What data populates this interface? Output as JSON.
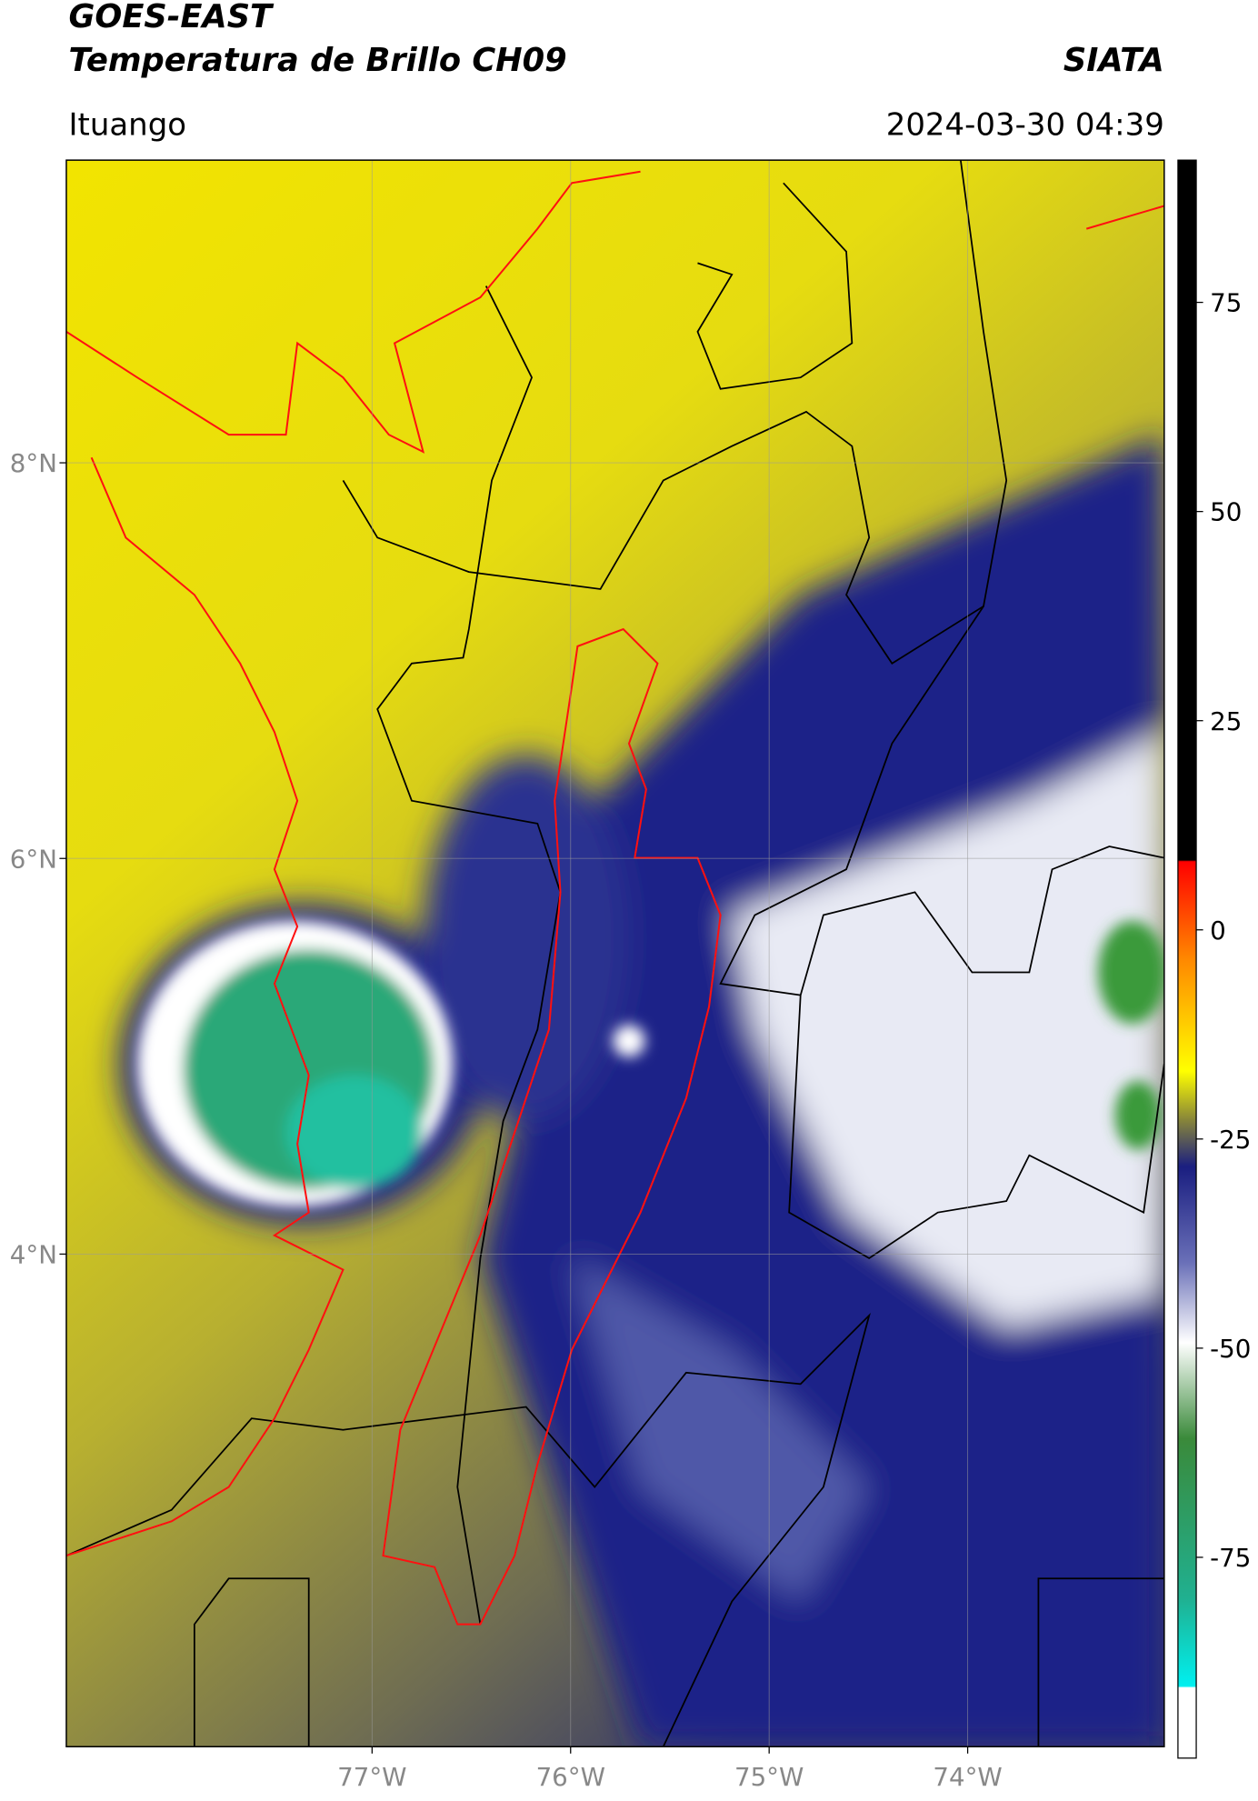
{
  "title": "GOES-EAST",
  "subtitle": "Temperatura de Brillo CH09",
  "source": "SIATA",
  "region": "Ituango",
  "datetime": "2024-03-30 04:39",
  "map": {
    "lonlim": [
      -78.54,
      -73.01
    ],
    "latlim": [
      1.51,
      9.53
    ],
    "grid": true,
    "lonticks": [
      {
        "value": -77,
        "label": "77°W"
      },
      {
        "value": -76,
        "label": "76°W"
      },
      {
        "value": -75,
        "label": "75°W"
      },
      {
        "value": -74,
        "label": "74°W"
      }
    ],
    "latticks": [
      {
        "value": 8,
        "label": "8°N"
      },
      {
        "value": 6,
        "label": "6°N"
      },
      {
        "value": 4,
        "label": "4°N"
      }
    ]
  },
  "colorbar": {
    "lim": [
      -99,
      92
    ],
    "ticks": [
      75,
      50,
      25,
      0,
      -25,
      -50,
      -75
    ]
  }
}
